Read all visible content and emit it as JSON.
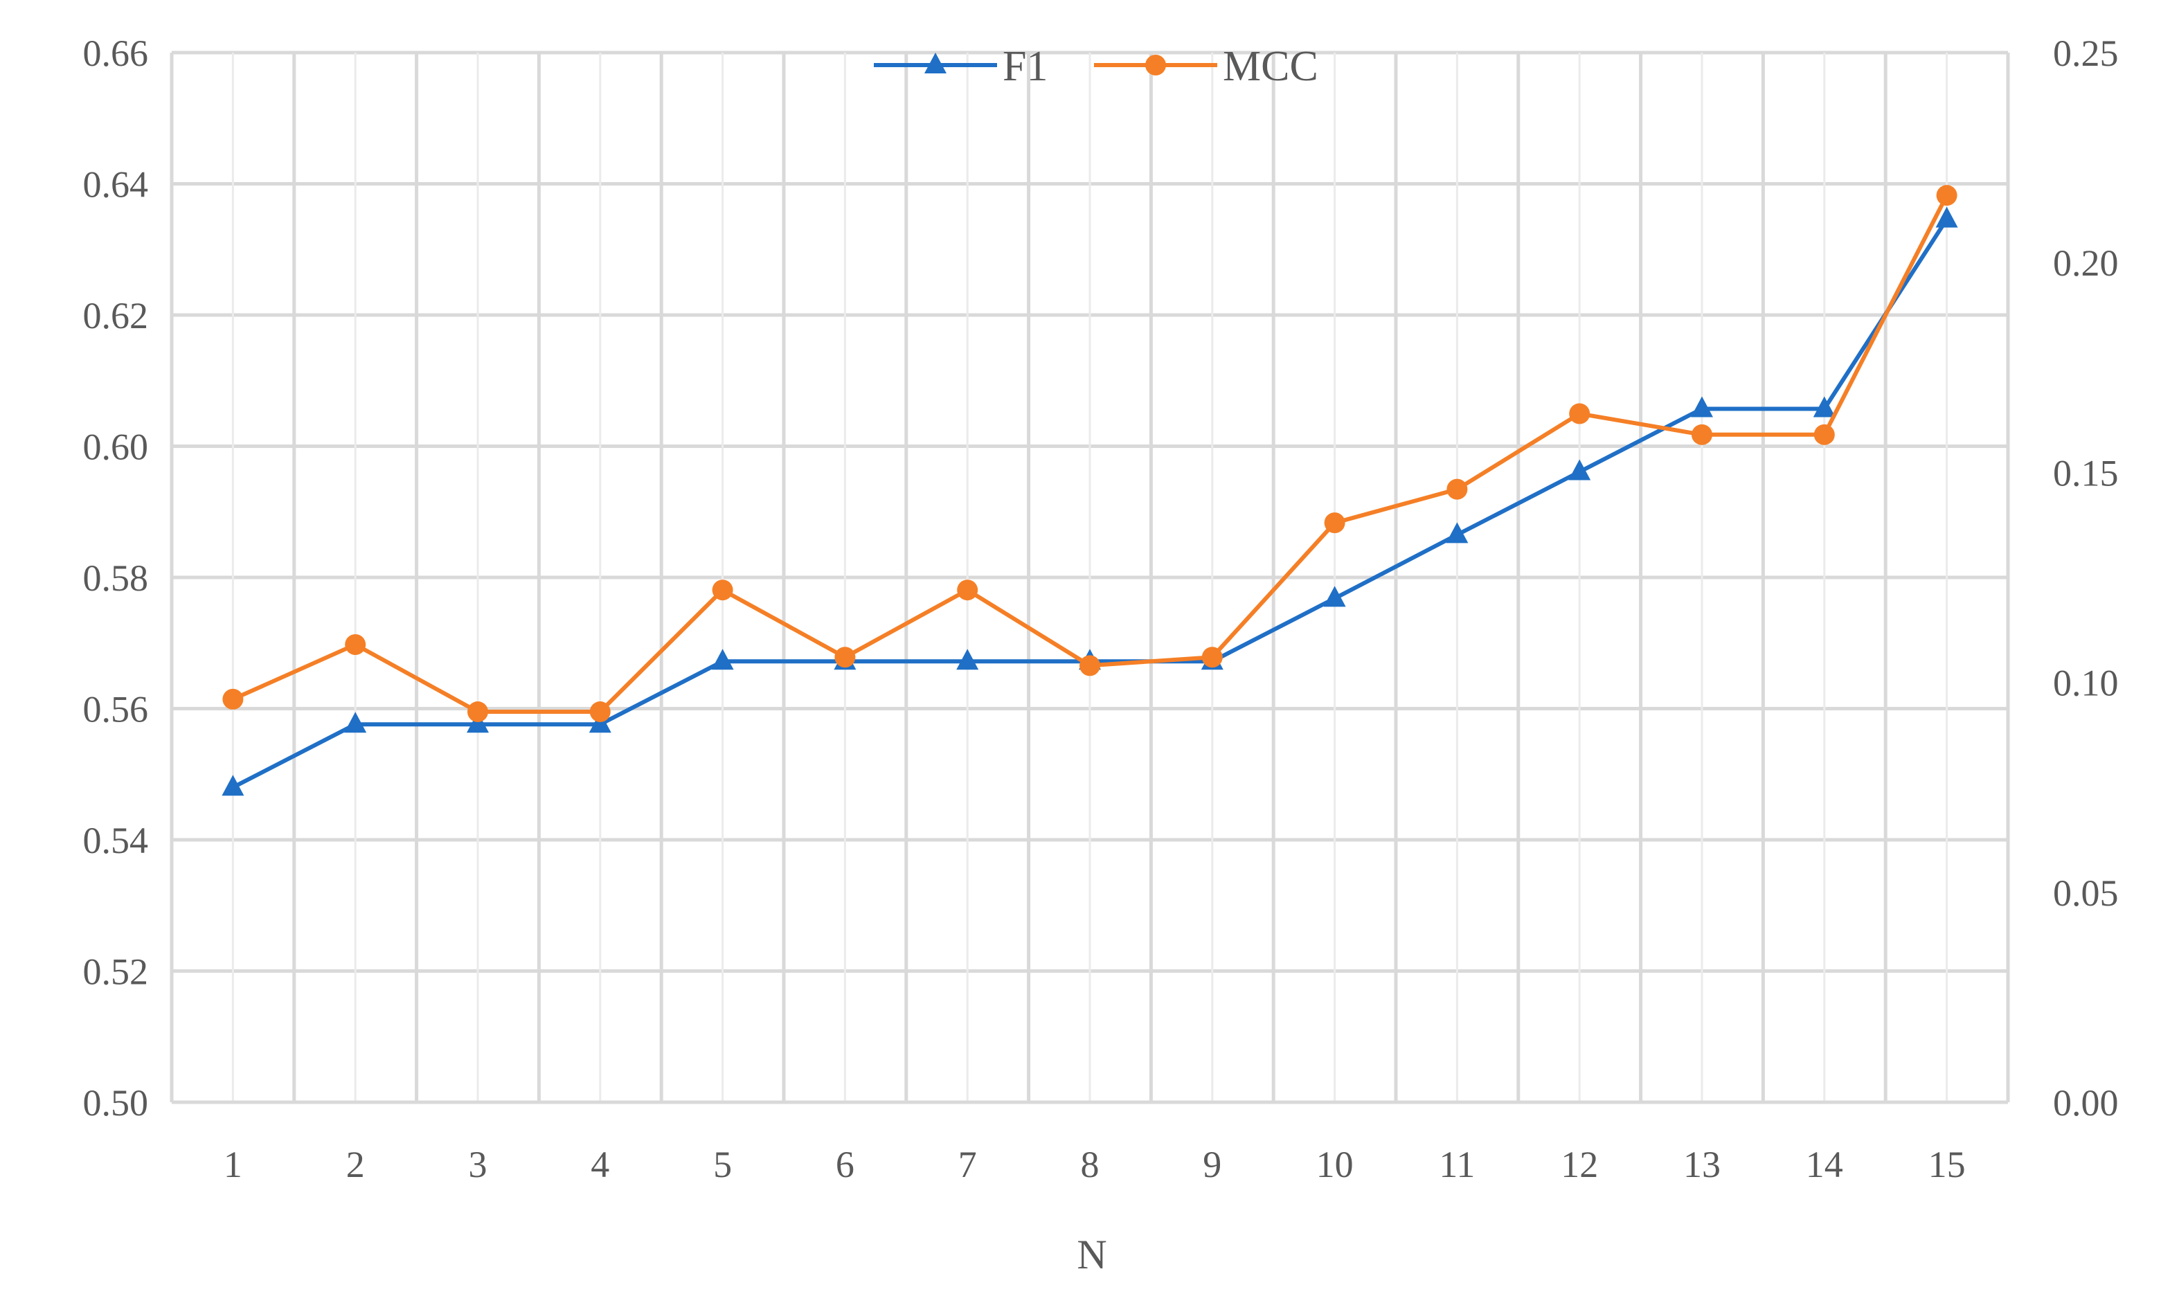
{
  "chart_data": {
    "type": "line",
    "title": "",
    "xlabel": "N",
    "ylabel": "",
    "y2label": "",
    "categories": [
      "1",
      "2",
      "3",
      "4",
      "5",
      "6",
      "7",
      "8",
      "9",
      "10",
      "11",
      "12",
      "13",
      "14",
      "15"
    ],
    "y_ticks": [
      "0.50",
      "0.52",
      "0.54",
      "0.56",
      "0.58",
      "0.60",
      "0.62",
      "0.64",
      "0.66"
    ],
    "y2_ticks": [
      "0.00",
      "0.05",
      "0.10",
      "0.15",
      "0.20",
      "0.25"
    ],
    "ylim": [
      0.5,
      0.66
    ],
    "y2lim": [
      0.0,
      0.25
    ],
    "grid": true,
    "legend_position": "top-center",
    "series": [
      {
        "name": "F1",
        "axis": "left",
        "marker": "triangle",
        "color": "#1F6FC6",
        "values": [
          0.548,
          0.5576,
          0.5576,
          0.5576,
          0.5672,
          0.5672,
          0.5672,
          0.5672,
          0.5672,
          0.5768,
          0.5865,
          0.5961,
          0.6057,
          0.6057,
          0.6346
        ]
      },
      {
        "name": "MCC",
        "axis": "right",
        "marker": "circle",
        "color": "#F57F26",
        "values": [
          0.096,
          0.109,
          0.093,
          0.093,
          0.122,
          0.106,
          0.122,
          0.104,
          0.106,
          0.138,
          0.146,
          0.164,
          0.159,
          0.159,
          0.216
        ]
      }
    ]
  }
}
